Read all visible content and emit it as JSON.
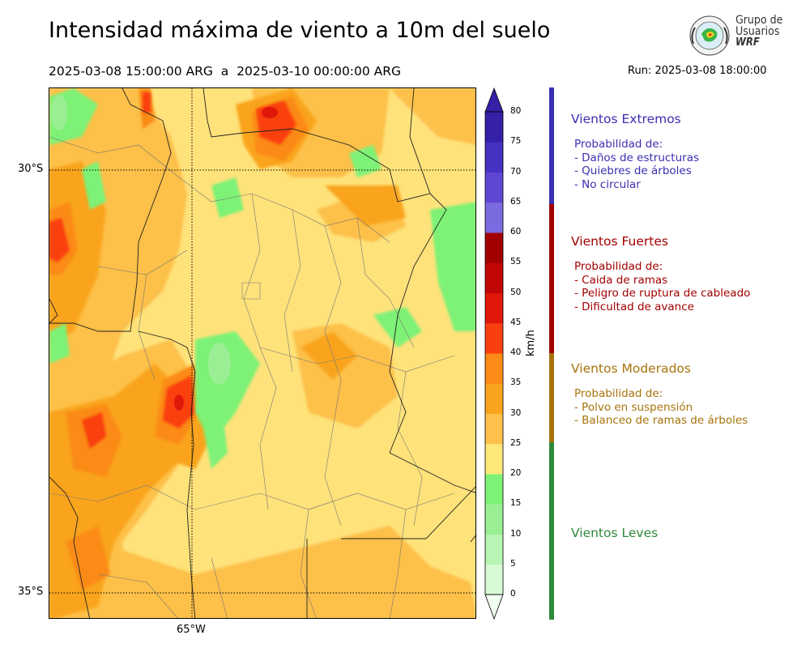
{
  "header": {
    "title": "Intensidad máxima de viento a 10m del suelo",
    "period": "2025-03-08 15:00:00 ARG  a  2025-03-10 00:00:00 ARG",
    "run": "Run: 2025-03-08 18:00:00"
  },
  "logo": {
    "line1": "Grupo de",
    "line2": "Usuarios",
    "line3": "WRF"
  },
  "map": {
    "lat_labels": [
      "30°S",
      "35°S"
    ],
    "lon_labels": [
      "65°W"
    ]
  },
  "colorbar": {
    "unit": "km/h",
    "ticks": [
      "0",
      "5",
      "10",
      "15",
      "20",
      "25",
      "30",
      "35",
      "40",
      "45",
      "50",
      "55",
      "60",
      "65",
      "70",
      "75",
      "80"
    ],
    "colors": [
      "#f0fff0",
      "#d8fbd6",
      "#b8f5b4",
      "#9aef94",
      "#7df276",
      "#fde879",
      "#fdc04a",
      "#f9a41f",
      "#fb8a16",
      "#fa3f0e",
      "#e0180a",
      "#c10606",
      "#a20000",
      "#7a6be0",
      "#5f47d3",
      "#4632c2",
      "#3520a8"
    ]
  },
  "categories": [
    {
      "title": "Vientos Extremos",
      "color": "#3a2fb0",
      "lead": "Probabilidad de:",
      "lines": [
        "- Daños de estructuras",
        "- Quiebres de árboles",
        "- No circular"
      ]
    },
    {
      "title": "Vientos Fuertes",
      "color": "#a20000",
      "lead": "Probabilidad de:",
      "lines": [
        "- Caida de ramas",
        "- Peligro de ruptura de cableado",
        "- Dificultad de avance"
      ]
    },
    {
      "title": "Vientos Moderados",
      "color": "#a7730b",
      "lead": "Probabilidad de:",
      "lines": [
        "- Polvo en suspensión",
        "- Balanceo de ramas de árboles"
      ]
    },
    {
      "title": "Vientos Leves",
      "color": "#2e8b3a"
    }
  ]
}
